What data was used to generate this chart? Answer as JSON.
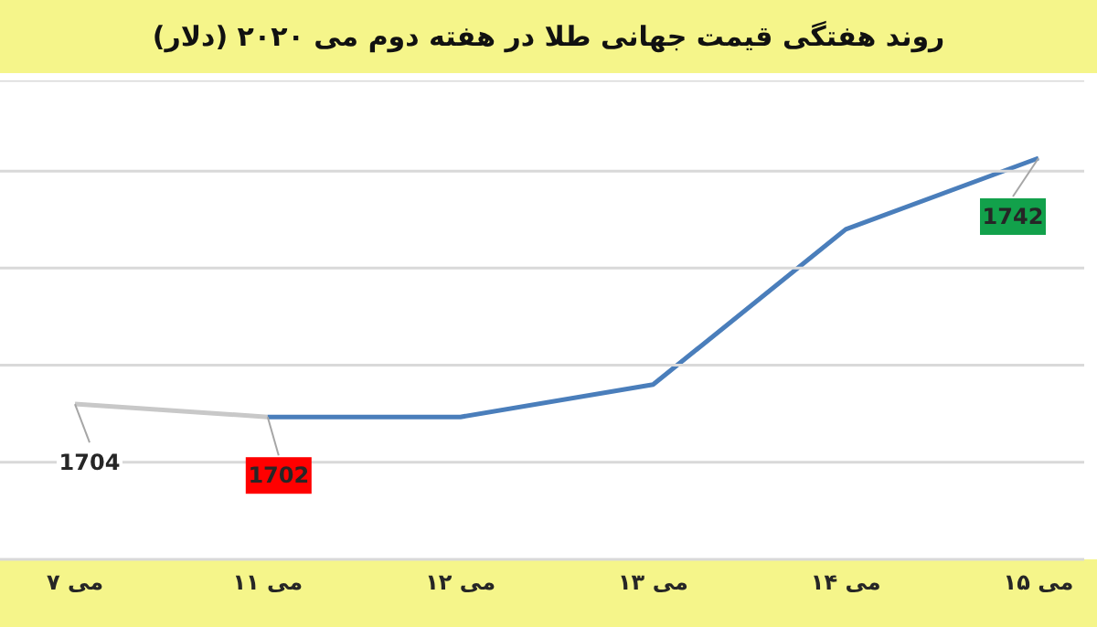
{
  "chart_data": {
    "type": "line",
    "title": "روند هفتگی قیمت جهانی طلا در هفته دوم می ۲۰۲۰ (دلار)",
    "categories": [
      "۷ می",
      "۱۱ می",
      "۱۲ می",
      "۱۳ می",
      "۱۴ می",
      "۱۵ می"
    ],
    "series": [
      {
        "color": "#c8c8c8",
        "values": [
          1704,
          1702,
          null,
          null,
          null,
          null
        ],
        "value_labels": [
          "1704",
          null,
          null,
          null,
          null,
          null
        ]
      },
      {
        "color": "#4a7ebb",
        "values": [
          null,
          1702,
          1702,
          1707,
          1731,
          1742
        ],
        "value_labels": [
          null,
          "1702",
          null,
          null,
          null,
          "1742"
        ]
      }
    ],
    "tick_labels": "x",
    "grid": "y",
    "marker": "none",
    "line_style": "solid"
  }
}
